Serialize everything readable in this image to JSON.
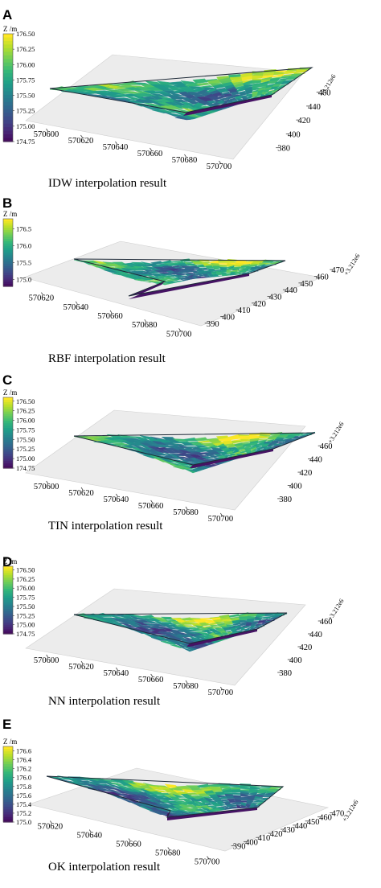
{
  "chart_data": [
    {
      "type": "surface3d",
      "panel_label": "A",
      "caption": "IDW interpolation result",
      "colorbar": {
        "label": "Z /m",
        "range": [
          174.75,
          176.5
        ],
        "ticks": [
          "176.50",
          "176.25",
          "176.00",
          "175.75",
          "175.50",
          "175.25",
          "175.00",
          "174.75"
        ]
      },
      "x_axis": {
        "range": [
          570590,
          570710
        ],
        "ticks": [
          "570600",
          "570620",
          "570640",
          "570660",
          "570680",
          "570700"
        ]
      },
      "y_axis": {
        "range": [
          375,
          470
        ],
        "ticks": [
          "380",
          "400",
          "420",
          "440",
          "460"
        ],
        "offset": "+3.212e6"
      },
      "colormap": "viridis"
    },
    {
      "type": "surface3d",
      "panel_label": "B",
      "caption": "RBF interpolation result",
      "colorbar": {
        "label": "Z /m",
        "range": [
          174.8,
          176.8
        ],
        "ticks": [
          "176.5",
          "176.0",
          "175.5",
          "175.0"
        ]
      },
      "x_axis": {
        "range": [
          570610,
          570710
        ],
        "ticks": [
          "570620",
          "570640",
          "570660",
          "570680",
          "570700"
        ]
      },
      "y_axis": {
        "range": [
          385,
          475
        ],
        "ticks": [
          "390",
          "400",
          "410",
          "420",
          "430",
          "440",
          "450",
          "460",
          "470"
        ],
        "offset": "+3.212e6"
      },
      "colormap": "viridis"
    },
    {
      "type": "surface3d",
      "panel_label": "C",
      "caption": "TIN interpolation result",
      "colorbar": {
        "label": "Z /m",
        "range": [
          174.75,
          176.6
        ],
        "ticks": [
          "176.50",
          "176.25",
          "176.00",
          "175.75",
          "175.50",
          "175.25",
          "175.00",
          "174.75"
        ]
      },
      "x_axis": {
        "range": [
          570590,
          570710
        ],
        "ticks": [
          "570600",
          "570620",
          "570640",
          "570660",
          "570680",
          "570700"
        ]
      },
      "y_axis": {
        "range": [
          375,
          470
        ],
        "ticks": [
          "380",
          "400",
          "420",
          "440",
          "460"
        ],
        "offset": "+3.212e6"
      },
      "colormap": "viridis"
    },
    {
      "type": "surface3d",
      "panel_label": "D",
      "caption": "NN interpolation result",
      "colorbar": {
        "label": "Z /m",
        "range": [
          174.75,
          176.6
        ],
        "ticks": [
          "176.50",
          "176.25",
          "176.00",
          "175.75",
          "175.50",
          "175.25",
          "175.00",
          "174.75"
        ]
      },
      "x_axis": {
        "range": [
          570590,
          570710
        ],
        "ticks": [
          "570600",
          "570620",
          "570640",
          "570660",
          "570680",
          "570700"
        ]
      },
      "y_axis": {
        "range": [
          375,
          470
        ],
        "ticks": [
          "380",
          "400",
          "420",
          "440",
          "460"
        ],
        "offset": "+3.212e6"
      },
      "colormap": "viridis"
    },
    {
      "type": "surface3d",
      "panel_label": "E",
      "caption": "OK interpolation result",
      "colorbar": {
        "label": "Z /m",
        "range": [
          175.0,
          176.7
        ],
        "ticks": [
          "176.6",
          "176.4",
          "176.2",
          "176.0",
          "175.8",
          "175.6",
          "175.4",
          "175.2",
          "175.0"
        ]
      },
      "x_axis": {
        "range": [
          570610,
          570710
        ],
        "ticks": [
          "570620",
          "570640",
          "570660",
          "570680",
          "570700"
        ]
      },
      "y_axis": {
        "range": [
          385,
          475
        ],
        "ticks": [
          "390",
          "400",
          "410",
          "420",
          "430",
          "440",
          "450",
          "460",
          "470"
        ],
        "offset": "+3.212e6"
      },
      "colormap": "viridis"
    }
  ]
}
